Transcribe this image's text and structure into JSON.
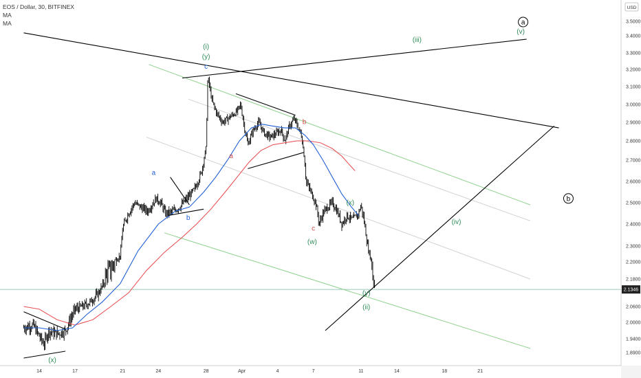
{
  "legend": {
    "title": "EOS / Dollar, 30, BITFINEX",
    "indicators": [
      "MA",
      "MA"
    ]
  },
  "currency_badge": "USD",
  "price_label": {
    "value": "2.1346",
    "price": 2.1346
  },
  "colors": {
    "candle": "#000000",
    "ma_fast": "#1f5fd6",
    "ma_slow": "#e8464a",
    "channel_green": "#8fd18f",
    "channel_gray": "#d2d2d2",
    "trendline": "#000000",
    "label_green": "#2e8b57",
    "label_blue": "#1f5fd6",
    "label_red": "#d24a4a",
    "price_line": "#7fb8a0"
  },
  "chart_data": {
    "type": "candlestick",
    "x_ticks": [
      "14",
      "17",
      "21",
      "24",
      "28",
      "Apr",
      "4",
      "7",
      "11",
      "14",
      "18",
      "21"
    ],
    "x_tick_index": [
      0,
      3,
      7,
      10,
      14,
      17,
      20,
      23,
      27,
      30,
      34,
      37
    ],
    "y_ticks": [
      "3.5000",
      "3.4000",
      "3.3000",
      "3.2000",
      "3.1000",
      "3.0000",
      "2.9000",
      "2.8000",
      "2.7000",
      "2.6000",
      "2.5000",
      "2.4000",
      "2.3000",
      "2.2000",
      "2.1800",
      "2.0600",
      "2.0000",
      "1.9400",
      "1.8900"
    ],
    "y_tick_values": [
      3.5,
      3.4,
      3.3,
      3.2,
      3.1,
      3.0,
      2.9,
      2.8,
      2.7,
      2.6,
      2.5,
      2.4,
      2.3,
      2.2,
      2.18,
      2.06,
      2.0,
      1.94,
      1.89
    ],
    "price_path": [
      [
        -1.3,
        1.98
      ],
      [
        -0.5,
        1.99
      ],
      [
        0.0,
        1.95
      ],
      [
        0.4,
        1.92
      ],
      [
        0.8,
        1.97
      ],
      [
        1.3,
        1.96
      ],
      [
        1.7,
        1.96
      ],
      [
        2.2,
        1.97
      ],
      [
        2.6,
        2.01
      ],
      [
        3.0,
        2.05
      ],
      [
        3.6,
        2.06
      ],
      [
        4.3,
        2.08
      ],
      [
        5.0,
        2.12
      ],
      [
        5.6,
        2.18
      ],
      [
        6.2,
        2.2
      ],
      [
        6.8,
        2.24
      ],
      [
        7.0,
        2.38
      ],
      [
        7.4,
        2.44
      ],
      [
        8.0,
        2.5
      ],
      [
        8.5,
        2.48
      ],
      [
        9.1,
        2.46
      ],
      [
        9.8,
        2.52
      ],
      [
        10.2,
        2.5
      ],
      [
        10.6,
        2.45
      ],
      [
        11.2,
        2.46
      ],
      [
        11.8,
        2.48
      ],
      [
        12.4,
        2.52
      ],
      [
        13.0,
        2.56
      ],
      [
        13.6,
        2.64
      ],
      [
        14.0,
        2.76
      ],
      [
        14.15,
        3.16
      ],
      [
        14.5,
        3.02
      ],
      [
        14.9,
        2.95
      ],
      [
        15.4,
        2.9
      ],
      [
        16.0,
        2.93
      ],
      [
        16.6,
        2.96
      ],
      [
        16.9,
        3.0
      ],
      [
        17.2,
        2.88
      ],
      [
        17.5,
        2.78
      ],
      [
        17.9,
        2.85
      ],
      [
        18.4,
        2.9
      ],
      [
        18.9,
        2.84
      ],
      [
        19.4,
        2.82
      ],
      [
        19.9,
        2.84
      ],
      [
        20.3,
        2.86
      ],
      [
        20.6,
        2.8
      ],
      [
        21.0,
        2.88
      ],
      [
        21.4,
        2.92
      ],
      [
        21.8,
        2.86
      ],
      [
        22.0,
        2.83
      ],
      [
        22.2,
        2.74
      ],
      [
        22.4,
        2.6
      ],
      [
        22.8,
        2.55
      ],
      [
        23.2,
        2.5
      ],
      [
        23.5,
        2.4
      ],
      [
        23.8,
        2.45
      ],
      [
        24.2,
        2.48
      ],
      [
        24.6,
        2.5
      ],
      [
        25.0,
        2.46
      ],
      [
        25.4,
        2.4
      ],
      [
        25.8,
        2.44
      ],
      [
        26.3,
        2.42
      ],
      [
        26.8,
        2.45
      ],
      [
        27.0,
        2.49
      ],
      [
        27.3,
        2.4
      ],
      [
        27.6,
        2.28
      ],
      [
        27.9,
        2.2
      ],
      [
        28.1,
        2.16
      ],
      [
        28.2,
        2.13
      ]
    ],
    "ma_fast": [
      [
        -1.3,
        1.98
      ],
      [
        0.0,
        1.98
      ],
      [
        1.5,
        1.97
      ],
      [
        2.8,
        1.98
      ],
      [
        4.0,
        2.03
      ],
      [
        5.3,
        2.08
      ],
      [
        6.8,
        2.16
      ],
      [
        8.3,
        2.27
      ],
      [
        10.0,
        2.4
      ],
      [
        11.4,
        2.46
      ],
      [
        12.6,
        2.48
      ],
      [
        13.8,
        2.55
      ],
      [
        14.8,
        2.62
      ],
      [
        15.8,
        2.7
      ],
      [
        16.8,
        2.8
      ],
      [
        17.8,
        2.87
      ],
      [
        18.7,
        2.89
      ],
      [
        19.6,
        2.88
      ],
      [
        20.6,
        2.87
      ],
      [
        21.5,
        2.87
      ],
      [
        22.3,
        2.83
      ],
      [
        23.0,
        2.78
      ],
      [
        23.8,
        2.7
      ],
      [
        24.6,
        2.62
      ],
      [
        25.4,
        2.54
      ],
      [
        26.2,
        2.48
      ],
      [
        26.8,
        2.44
      ]
    ],
    "ma_slow": [
      [
        -1.3,
        2.06
      ],
      [
        0.0,
        2.05
      ],
      [
        1.5,
        2.01
      ],
      [
        3.0,
        1.99
      ],
      [
        4.5,
        2.01
      ],
      [
        6.0,
        2.06
      ],
      [
        7.5,
        2.12
      ],
      [
        9.0,
        2.19
      ],
      [
        10.5,
        2.26
      ],
      [
        12.0,
        2.34
      ],
      [
        13.2,
        2.4
      ],
      [
        14.4,
        2.47
      ],
      [
        15.6,
        2.55
      ],
      [
        16.6,
        2.62
      ],
      [
        17.6,
        2.69
      ],
      [
        18.6,
        2.75
      ],
      [
        19.6,
        2.78
      ],
      [
        20.6,
        2.79
      ],
      [
        21.6,
        2.8
      ],
      [
        22.6,
        2.8
      ],
      [
        23.6,
        2.79
      ],
      [
        24.6,
        2.76
      ],
      [
        25.4,
        2.72
      ],
      [
        26.0,
        2.68
      ],
      [
        26.5,
        2.65
      ]
    ],
    "wave_labels": [
      {
        "text": "(i)",
        "x": 14.0,
        "y": 3.325,
        "color": "green"
      },
      {
        "text": "(y)",
        "x": 14.0,
        "y": 3.265,
        "color": "green"
      },
      {
        "text": "c",
        "x": 14.0,
        "y": 3.205,
        "color": "blue"
      },
      {
        "text": "a",
        "x": 9.6,
        "y": 2.63,
        "color": "blue"
      },
      {
        "text": "b",
        "x": 12.5,
        "y": 2.42,
        "color": "blue"
      },
      {
        "text": "a",
        "x": 16.1,
        "y": 2.71,
        "color": "red"
      },
      {
        "text": "b",
        "x": 22.25,
        "y": 2.89,
        "color": "red"
      },
      {
        "text": "c",
        "x": 23.0,
        "y": 2.37,
        "color": "red"
      },
      {
        "text": "(w)",
        "x": 22.9,
        "y": 2.31,
        "color": "green"
      },
      {
        "text": "(x)",
        "x": 26.1,
        "y": 2.49,
        "color": "green"
      },
      {
        "text": "(y)",
        "x": 27.45,
        "y": 2.11,
        "color": "green"
      },
      {
        "text": "(ii)",
        "x": 27.45,
        "y": 2.05,
        "color": "green"
      },
      {
        "text": "(x)",
        "x": 1.1,
        "y": 1.855,
        "color": "green"
      },
      {
        "text": "(iii)",
        "x": 31.7,
        "y": 3.365,
        "color": "green"
      },
      {
        "text": "(iv)",
        "x": 35.0,
        "y": 2.4,
        "color": "green"
      },
      {
        "text": "(v)",
        "x": 40.4,
        "y": 3.415,
        "color": "green"
      }
    ],
    "circle_labels": [
      {
        "text": "a",
        "x": 40.6,
        "y": 3.505
      },
      {
        "text": "b",
        "x": 44.4,
        "y": 2.52
      }
    ],
    "trendlines": [
      {
        "p1": [
          -1.3,
          3.42
        ],
        "p2": [
          43.6,
          2.87
        ]
      },
      {
        "p1": [
          12.0,
          3.15
        ],
        "p2": [
          40.9,
          3.38
        ]
      },
      {
        "p1": [
          24.0,
          1.97
        ],
        "p2": [
          43.2,
          2.88
        ]
      },
      {
        "p1": [
          -1.3,
          2.04
        ],
        "p2": [
          2.2,
          1.975
        ]
      },
      {
        "p1": [
          -1.3,
          1.87
        ],
        "p2": [
          2.2,
          1.895
        ]
      },
      {
        "p1": [
          11.0,
          2.62
        ],
        "p2": [
          12.6,
          2.49
        ]
      },
      {
        "p1": [
          10.8,
          2.44
        ],
        "p2": [
          13.8,
          2.47
        ]
      },
      {
        "p1": [
          16.5,
          3.06
        ],
        "p2": [
          21.5,
          2.94
        ]
      },
      {
        "p1": [
          17.5,
          2.66
        ],
        "p2": [
          22.2,
          2.74
        ]
      }
    ],
    "channel_green": [
      {
        "p1": [
          9.2,
          3.23
        ],
        "p2": [
          41.2,
          2.49
        ]
      },
      {
        "p1": [
          10.5,
          2.36
        ],
        "p2": [
          41.2,
          1.905
        ]
      }
    ],
    "channel_gray": [
      {
        "p1": [
          9.0,
          2.82
        ],
        "p2": [
          41.2,
          2.18
        ]
      },
      {
        "p1": [
          12.5,
          3.03
        ],
        "p2": [
          41.2,
          2.415
        ]
      }
    ]
  }
}
